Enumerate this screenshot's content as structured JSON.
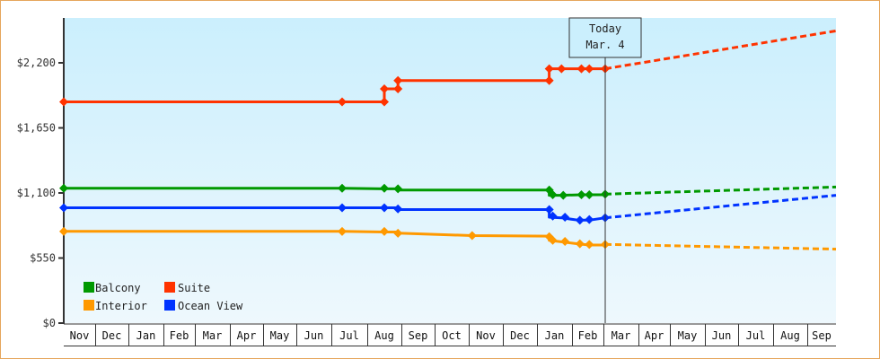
{
  "chart_data": {
    "type": "line",
    "title": "",
    "xlabel": "",
    "ylabel": "",
    "ylim": [
      0,
      2640
    ],
    "y_ticks": [
      {
        "value": 0,
        "label": "$0"
      },
      {
        "value": 550,
        "label": "$550"
      },
      {
        "value": 1100,
        "label": "$1,100"
      },
      {
        "value": 1650,
        "label": "$1,650"
      },
      {
        "value": 2200,
        "label": "$2,200"
      }
    ],
    "x_months": [
      "Nov",
      "Dec",
      "Jan",
      "Feb",
      "Mar",
      "Apr",
      "May",
      "Jun",
      "Jul",
      "Aug",
      "Sep",
      "Oct",
      "Nov",
      "Dec",
      "Jan",
      "Feb",
      "Mar",
      "Apr",
      "May",
      "Jun",
      "Jul",
      "Aug",
      "Sep"
    ],
    "grid": false,
    "legend_position": "bottom-left inside plot",
    "today_marker": {
      "line1": "Today",
      "line2": "Mar. 4"
    },
    "series": [
      {
        "name": "Suite",
        "color": "#ff3300",
        "history": [
          [
            0,
            1870
          ],
          [
            8.3,
            1870
          ],
          [
            9.5,
            1870
          ],
          [
            9.5,
            1980
          ],
          [
            9.9,
            1980
          ],
          [
            9.9,
            2050
          ],
          [
            14.35,
            2050
          ],
          [
            14.35,
            2150
          ],
          [
            14.7,
            2150
          ],
          [
            15.3,
            2150
          ],
          [
            15.55,
            2150
          ],
          [
            16.05,
            2150
          ]
        ],
        "markers": [
          [
            0,
            1870
          ],
          [
            8.3,
            1870
          ],
          [
            9.5,
            1870
          ],
          [
            9.5,
            1980
          ],
          [
            9.9,
            1980
          ],
          [
            9.9,
            2050
          ],
          [
            14.35,
            2050
          ],
          [
            14.35,
            2150
          ],
          [
            14.7,
            2150
          ],
          [
            15.3,
            2150
          ],
          [
            15.55,
            2150
          ],
          [
            16.05,
            2150
          ]
        ],
        "forecast": [
          [
            16.05,
            2150
          ],
          [
            23,
            2470
          ]
        ]
      },
      {
        "name": "Balcony",
        "color": "#009900",
        "history": [
          [
            0,
            1140
          ],
          [
            8.3,
            1140
          ],
          [
            9.5,
            1135
          ],
          [
            9.9,
            1135
          ],
          [
            9.9,
            1125
          ],
          [
            14.35,
            1125
          ],
          [
            14.35,
            1080
          ],
          [
            14.7,
            1080
          ],
          [
            15.3,
            1085
          ],
          [
            15.55,
            1085
          ],
          [
            16.05,
            1085
          ]
        ],
        "markers": [
          [
            0,
            1140
          ],
          [
            8.3,
            1140
          ],
          [
            9.5,
            1140
          ],
          [
            9.9,
            1135
          ],
          [
            14.35,
            1125
          ],
          [
            14.45,
            1085
          ],
          [
            14.75,
            1080
          ],
          [
            15.3,
            1085
          ],
          [
            15.55,
            1085
          ],
          [
            16.05,
            1090
          ]
        ],
        "forecast": [
          [
            16.05,
            1090
          ],
          [
            23,
            1150
          ]
        ]
      },
      {
        "name": "Ocean View",
        "color": "#0033ff",
        "history": [
          [
            0,
            975
          ],
          [
            8.3,
            975
          ],
          [
            9.5,
            975
          ],
          [
            9.9,
            975
          ],
          [
            9.9,
            960
          ],
          [
            14.35,
            960
          ],
          [
            14.35,
            895
          ],
          [
            14.7,
            890
          ],
          [
            15.2,
            870
          ],
          [
            15.55,
            870
          ],
          [
            16.05,
            890
          ]
        ],
        "markers": [
          [
            0,
            975
          ],
          [
            8.3,
            975
          ],
          [
            9.5,
            975
          ],
          [
            9.9,
            965
          ],
          [
            14.35,
            960
          ],
          [
            14.45,
            905
          ],
          [
            14.8,
            895
          ],
          [
            15.25,
            870
          ],
          [
            15.55,
            875
          ],
          [
            16.05,
            890
          ]
        ],
        "forecast": [
          [
            16.05,
            890
          ],
          [
            23,
            1080
          ]
        ]
      },
      {
        "name": "Interior",
        "color": "#ff9900",
        "history": [
          [
            0,
            775
          ],
          [
            8.3,
            775
          ],
          [
            9.5,
            770
          ],
          [
            9.9,
            770
          ],
          [
            9.9,
            760
          ],
          [
            12.1,
            740
          ],
          [
            14.35,
            735
          ],
          [
            14.35,
            700
          ],
          [
            15.2,
            670
          ],
          [
            15.55,
            660
          ],
          [
            16.05,
            660
          ]
        ],
        "markers": [
          [
            0,
            775
          ],
          [
            8.3,
            775
          ],
          [
            9.5,
            775
          ],
          [
            9.9,
            760
          ],
          [
            12.1,
            740
          ],
          [
            14.35,
            730
          ],
          [
            14.45,
            700
          ],
          [
            14.8,
            690
          ],
          [
            15.25,
            670
          ],
          [
            15.55,
            665
          ],
          [
            16.05,
            665
          ]
        ],
        "forecast": [
          [
            16.05,
            665
          ],
          [
            23,
            625
          ]
        ]
      }
    ]
  },
  "legend": [
    {
      "label": "Balcony",
      "color": "#009900"
    },
    {
      "label": "Suite",
      "color": "#ff3300"
    },
    {
      "label": "Interior",
      "color": "#ff9900"
    },
    {
      "label": "Ocean View",
      "color": "#0033ff"
    }
  ],
  "today": {
    "line1": "Today",
    "line2": "Mar. 4"
  },
  "y_labels": [
    "$0",
    "$550",
    "$1,100",
    "$1,650",
    "$2,200"
  ],
  "months": [
    "Nov",
    "Dec",
    "Jan",
    "Feb",
    "Mar",
    "Apr",
    "May",
    "Jun",
    "Jul",
    "Aug",
    "Sep",
    "Oct",
    "Nov",
    "Dec",
    "Jan",
    "Feb",
    "Mar",
    "Apr",
    "May",
    "Jun",
    "Jul",
    "Aug",
    "Sep"
  ]
}
